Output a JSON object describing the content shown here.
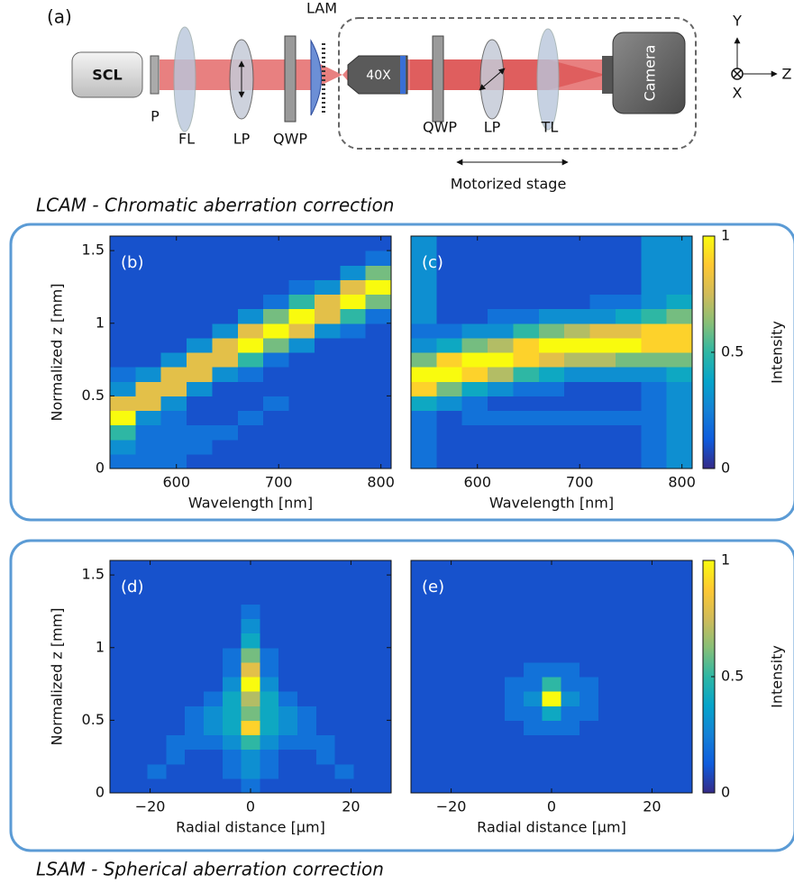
{
  "diagram": {
    "panel_label": "(a)",
    "scl": "SCL",
    "p": "P",
    "fl": "FL",
    "lp1": "LP",
    "qwp1": "QWP",
    "lam": "LAM",
    "objective": "40X",
    "qwp2": "QWP",
    "lp2": "LP",
    "tl": "TL",
    "camera": "Camera",
    "axis_y": "Y",
    "axis_z": "Z",
    "axis_x": "X",
    "stage": "Motorized stage"
  },
  "captions": {
    "top": "LCAM - Chromatic aberration correction",
    "bottom": "LSAM - Spherical aberration correction"
  },
  "chart_data": [
    {
      "type": "heatmap",
      "panel_label": "(b)",
      "xlabel": "Wavelength [nm]",
      "ylabel": "Normalized z [mm]",
      "xlim": [
        535,
        810
      ],
      "ylim": [
        0,
        1.6
      ],
      "xticks": [
        600,
        700,
        800
      ],
      "yticks": [
        0,
        0.5,
        1,
        1.5
      ],
      "colormap": [
        "#352a87",
        "#0f5cdd",
        "#1481d6",
        "#06a4ca",
        "#2eb7a4",
        "#87bf77",
        "#d1bb59",
        "#fec832",
        "#f9fb0e"
      ],
      "clim": [
        0,
        1
      ],
      "values": [
        [
          0.2,
          0.3,
          0.5,
          1,
          0.8,
          0.3,
          0.2,
          0.1,
          0.1,
          0.1,
          0.1,
          0.1,
          0.1,
          0.1,
          0.1,
          0.1
        ],
        [
          0.2,
          0.2,
          0.2,
          0.3,
          0.8,
          0.8,
          0.3,
          0.1,
          0.1,
          0.1,
          0.1,
          0.1,
          0.1,
          0.1,
          0.1,
          0.1
        ],
        [
          0.2,
          0.2,
          0.2,
          0.2,
          0.3,
          0.8,
          0.8,
          0.3,
          0.1,
          0.1,
          0.1,
          0.1,
          0.1,
          0.1,
          0.1,
          0.1
        ],
        [
          0.1,
          0.2,
          0.2,
          0.1,
          0.1,
          0.3,
          0.8,
          0.8,
          0.3,
          0.1,
          0.1,
          0.1,
          0.1,
          0.1,
          0.1,
          0.1
        ],
        [
          0.1,
          0.1,
          0.2,
          0.1,
          0.1,
          0.1,
          0.3,
          0.8,
          0.8,
          0.3,
          0.1,
          0.1,
          0.1,
          0.1,
          0.1,
          0.1
        ],
        [
          0.1,
          0.1,
          0.1,
          0.2,
          0.1,
          0.1,
          0.2,
          0.5,
          1,
          0.8,
          0.3,
          0.1,
          0.1,
          0.1,
          0.1,
          0.1
        ],
        [
          0.1,
          0.1,
          0.1,
          0.1,
          0.2,
          0.1,
          0.1,
          0.2,
          0.6,
          1,
          0.6,
          0.2,
          0.1,
          0.1,
          0.1,
          0.1
        ],
        [
          0.1,
          0.1,
          0.1,
          0.1,
          0.1,
          0.1,
          0.1,
          0.1,
          0.3,
          0.8,
          1,
          0.5,
          0.2,
          0.1,
          0.1,
          0.1
        ],
        [
          0.1,
          0.1,
          0.1,
          0.1,
          0.1,
          0.1,
          0.1,
          0.1,
          0.1,
          0.3,
          0.8,
          0.8,
          0.3,
          0.1,
          0.1,
          0.1
        ],
        [
          0.1,
          0.1,
          0.1,
          0.1,
          0.1,
          0.1,
          0.1,
          0.1,
          0.1,
          0.2,
          0.5,
          1,
          0.8,
          0.3,
          0.1,
          0.1
        ],
        [
          0.1,
          0.1,
          0.1,
          0.1,
          0.1,
          0.1,
          0.1,
          0.1,
          0.1,
          0.1,
          0.2,
          0.6,
          1,
          0.6,
          0.2,
          0.1
        ]
      ]
    },
    {
      "type": "heatmap",
      "panel_label": "(c)",
      "xlabel": "Wavelength [nm]",
      "xlim": [
        535,
        810
      ],
      "ylim": [
        0,
        1.6
      ],
      "xticks": [
        600,
        700,
        800
      ],
      "colormap": [
        "#352a87",
        "#0f5cdd",
        "#1481d6",
        "#06a4ca",
        "#2eb7a4",
        "#87bf77",
        "#d1bb59",
        "#fec832",
        "#f9fb0e"
      ],
      "clim": [
        0,
        1
      ],
      "colorbar": {
        "label": "Intensity",
        "ticks": [
          0,
          0.5,
          1
        ]
      },
      "values": [
        [
          0.2,
          0.2,
          0.2,
          0.2,
          0.4,
          0.9,
          1,
          0.6,
          0.3,
          0.2,
          0.3,
          0.3,
          0.3,
          0.3,
          0.3,
          0.3
        ],
        [
          0.1,
          0.1,
          0.1,
          0.1,
          0.3,
          0.6,
          1,
          0.9,
          0.4,
          0.2,
          0.1,
          0.1,
          0.1,
          0.1,
          0.1,
          0.1
        ],
        [
          0.1,
          0.1,
          0.1,
          0.2,
          0.2,
          0.4,
          0.9,
          1,
          0.6,
          0.3,
          0.1,
          0.1,
          0.1,
          0.1,
          0.1,
          0.1
        ],
        [
          0.1,
          0.1,
          0.1,
          0.2,
          0.1,
          0.3,
          0.7,
          1,
          0.7,
          0.3,
          0.2,
          0.1,
          0.1,
          0.1,
          0.1,
          0.1
        ],
        [
          0.1,
          0.1,
          0.1,
          0.2,
          0.1,
          0.2,
          0.5,
          0.9,
          0.9,
          0.5,
          0.2,
          0.1,
          0.1,
          0.1,
          0.1,
          0.1
        ],
        [
          0.1,
          0.1,
          0.1,
          0.2,
          0.1,
          0.2,
          0.4,
          0.8,
          1,
          0.6,
          0.3,
          0.1,
          0.1,
          0.1,
          0.1,
          0.1
        ],
        [
          0.1,
          0.1,
          0.1,
          0.2,
          0.1,
          0.1,
          0.3,
          0.7,
          1,
          0.7,
          0.3,
          0.1,
          0.1,
          0.1,
          0.1,
          0.1
        ],
        [
          0.1,
          0.1,
          0.1,
          0.2,
          0.1,
          0.1,
          0.3,
          0.7,
          1,
          0.8,
          0.3,
          0.2,
          0.1,
          0.1,
          0.1,
          0.1
        ],
        [
          0.1,
          0.1,
          0.1,
          0.2,
          0.1,
          0.1,
          0.3,
          0.6,
          1,
          0.8,
          0.4,
          0.2,
          0.1,
          0.1,
          0.1,
          0.1
        ],
        [
          0.2,
          0.2,
          0.2,
          0.2,
          0.2,
          0.2,
          0.3,
          0.6,
          0.9,
          0.9,
          0.5,
          0.3,
          0.3,
          0.3,
          0.3,
          0.3
        ],
        [
          0.3,
          0.3,
          0.3,
          0.3,
          0.3,
          0.3,
          0.4,
          0.6,
          0.9,
          0.9,
          0.6,
          0.4,
          0.3,
          0.3,
          0.3,
          0.3
        ]
      ]
    },
    {
      "type": "heatmap",
      "panel_label": "(d)",
      "xlabel": "Radial distance [µm]",
      "ylabel": "Normalized z [mm]",
      "xlim": [
        -28,
        28
      ],
      "ylim": [
        0,
        1.6
      ],
      "xticks": [
        {
          "value": -20,
          "label": "−20"
        },
        0,
        20
      ],
      "yticks": [
        0,
        0.5,
        1,
        1.5
      ],
      "colormap": [
        "#352a87",
        "#0f5cdd",
        "#1481d6",
        "#06a4ca",
        "#2eb7a4",
        "#87bf77",
        "#d1bb59",
        "#fec832",
        "#f9fb0e"
      ],
      "clim": [
        0,
        1
      ],
      "values": [
        [
          0.1,
          0.1,
          0.1,
          0.1,
          0.1,
          0.1,
          0.1,
          0.1,
          0.1,
          0.1,
          0.1,
          0.1,
          0.1,
          0.1,
          0.1,
          0.1
        ],
        [
          0.1,
          0.1,
          0.1,
          0.1,
          0.1,
          0.1,
          0.1,
          0.1,
          0.1,
          0.1,
          0.1,
          0.1,
          0.1,
          0.1,
          0.1,
          0.1
        ],
        [
          0.1,
          0.2,
          0.1,
          0.1,
          0.1,
          0.1,
          0.1,
          0.1,
          0.1,
          0.1,
          0.1,
          0.1,
          0.1,
          0.1,
          0.1,
          0.1
        ],
        [
          0.1,
          0.1,
          0.2,
          0.2,
          0.1,
          0.1,
          0.1,
          0.1,
          0.1,
          0.1,
          0.1,
          0.1,
          0.1,
          0.1,
          0.1,
          0.1
        ],
        [
          0.1,
          0.1,
          0.1,
          0.2,
          0.2,
          0.2,
          0.1,
          0.1,
          0.1,
          0.1,
          0.1,
          0.1,
          0.1,
          0.1,
          0.1,
          0.1
        ],
        [
          0.1,
          0.1,
          0.1,
          0.2,
          0.3,
          0.3,
          0.2,
          0.1,
          0.1,
          0.1,
          0.1,
          0.1,
          0.1,
          0.1,
          0.1,
          0.1
        ],
        [
          0.1,
          0.2,
          0.2,
          0.3,
          0.4,
          0.4,
          0.4,
          0.3,
          0.2,
          0.2,
          0.1,
          0.1,
          0.1,
          0.1,
          0.1,
          0.1
        ],
        [
          0.2,
          0.3,
          0.3,
          0.5,
          0.9,
          0.6,
          0.7,
          1,
          0.8,
          0.6,
          0.4,
          0.3,
          0.2,
          0.1,
          0.1,
          0.1
        ],
        [
          0.1,
          0.2,
          0.2,
          0.3,
          0.4,
          0.4,
          0.4,
          0.3,
          0.2,
          0.2,
          0.1,
          0.1,
          0.1,
          0.1,
          0.1,
          0.1
        ],
        [
          0.1,
          0.1,
          0.1,
          0.2,
          0.3,
          0.3,
          0.2,
          0.1,
          0.1,
          0.1,
          0.1,
          0.1,
          0.1,
          0.1,
          0.1,
          0.1
        ],
        [
          0.1,
          0.1,
          0.1,
          0.2,
          0.2,
          0.2,
          0.1,
          0.1,
          0.1,
          0.1,
          0.1,
          0.1,
          0.1,
          0.1,
          0.1,
          0.1
        ],
        [
          0.1,
          0.1,
          0.2,
          0.2,
          0.1,
          0.1,
          0.1,
          0.1,
          0.1,
          0.1,
          0.1,
          0.1,
          0.1,
          0.1,
          0.1,
          0.1
        ],
        [
          0.1,
          0.2,
          0.1,
          0.1,
          0.1,
          0.1,
          0.1,
          0.1,
          0.1,
          0.1,
          0.1,
          0.1,
          0.1,
          0.1,
          0.1,
          0.1
        ],
        [
          0.1,
          0.1,
          0.1,
          0.1,
          0.1,
          0.1,
          0.1,
          0.1,
          0.1,
          0.1,
          0.1,
          0.1,
          0.1,
          0.1,
          0.1,
          0.1
        ],
        [
          0.1,
          0.1,
          0.1,
          0.1,
          0.1,
          0.1,
          0.1,
          0.1,
          0.1,
          0.1,
          0.1,
          0.1,
          0.1,
          0.1,
          0.1,
          0.1
        ]
      ]
    },
    {
      "type": "heatmap",
      "panel_label": "(e)",
      "xlabel": "Radial distance [µm]",
      "xlim": [
        -28,
        28
      ],
      "ylim": [
        0,
        1.6
      ],
      "xticks": [
        {
          "value": -20,
          "label": "−20"
        },
        0,
        20
      ],
      "colormap": [
        "#352a87",
        "#0f5cdd",
        "#1481d6",
        "#06a4ca",
        "#2eb7a4",
        "#87bf77",
        "#d1bb59",
        "#fec832",
        "#f9fb0e"
      ],
      "clim": [
        0,
        1
      ],
      "colorbar": {
        "label": "Intensity",
        "ticks": [
          0,
          0.5,
          1
        ]
      },
      "values": [
        [
          0.1,
          0.1,
          0.1,
          0.1,
          0.1,
          0.1,
          0.1,
          0.1,
          0.1,
          0.1,
          0.1,
          0.1,
          0.1,
          0.1,
          0.1,
          0.1
        ],
        [
          0.1,
          0.1,
          0.1,
          0.1,
          0.1,
          0.1,
          0.1,
          0.1,
          0.1,
          0.1,
          0.1,
          0.1,
          0.1,
          0.1,
          0.1,
          0.1
        ],
        [
          0.1,
          0.1,
          0.1,
          0.1,
          0.1,
          0.1,
          0.1,
          0.1,
          0.1,
          0.1,
          0.1,
          0.1,
          0.1,
          0.1,
          0.1,
          0.1
        ],
        [
          0.1,
          0.1,
          0.1,
          0.1,
          0.1,
          0.1,
          0.1,
          0.1,
          0.1,
          0.1,
          0.1,
          0.1,
          0.1,
          0.1,
          0.1,
          0.1
        ],
        [
          0.1,
          0.1,
          0.1,
          0.1,
          0.1,
          0.1,
          0.1,
          0.1,
          0.1,
          0.1,
          0.1,
          0.1,
          0.1,
          0.1,
          0.1,
          0.1
        ],
        [
          0.1,
          0.1,
          0.1,
          0.1,
          0.1,
          0.2,
          0.2,
          0.2,
          0.1,
          0.1,
          0.1,
          0.1,
          0.1,
          0.1,
          0.1,
          0.1
        ],
        [
          0.1,
          0.1,
          0.1,
          0.1,
          0.2,
          0.2,
          0.3,
          0.2,
          0.2,
          0.1,
          0.1,
          0.1,
          0.1,
          0.1,
          0.1,
          0.1
        ],
        [
          0.1,
          0.1,
          0.1,
          0.1,
          0.2,
          0.4,
          1,
          0.5,
          0.2,
          0.1,
          0.1,
          0.1,
          0.1,
          0.1,
          0.1,
          0.1
        ],
        [
          0.1,
          0.1,
          0.1,
          0.1,
          0.2,
          0.2,
          0.3,
          0.2,
          0.2,
          0.1,
          0.1,
          0.1,
          0.1,
          0.1,
          0.1,
          0.1
        ],
        [
          0.1,
          0.1,
          0.1,
          0.1,
          0.1,
          0.2,
          0.2,
          0.2,
          0.1,
          0.1,
          0.1,
          0.1,
          0.1,
          0.1,
          0.1,
          0.1
        ],
        [
          0.1,
          0.1,
          0.1,
          0.1,
          0.1,
          0.1,
          0.1,
          0.1,
          0.1,
          0.1,
          0.1,
          0.1,
          0.1,
          0.1,
          0.1,
          0.1
        ],
        [
          0.1,
          0.1,
          0.1,
          0.1,
          0.1,
          0.1,
          0.1,
          0.1,
          0.1,
          0.1,
          0.1,
          0.1,
          0.1,
          0.1,
          0.1,
          0.1
        ],
        [
          0.1,
          0.1,
          0.1,
          0.1,
          0.1,
          0.1,
          0.1,
          0.1,
          0.1,
          0.1,
          0.1,
          0.1,
          0.1,
          0.1,
          0.1,
          0.1
        ],
        [
          0.1,
          0.1,
          0.1,
          0.1,
          0.1,
          0.1,
          0.1,
          0.1,
          0.1,
          0.1,
          0.1,
          0.1,
          0.1,
          0.1,
          0.1,
          0.1
        ],
        [
          0.1,
          0.1,
          0.1,
          0.1,
          0.1,
          0.1,
          0.1,
          0.1,
          0.1,
          0.1,
          0.1,
          0.1,
          0.1,
          0.1,
          0.1,
          0.1
        ]
      ]
    }
  ]
}
